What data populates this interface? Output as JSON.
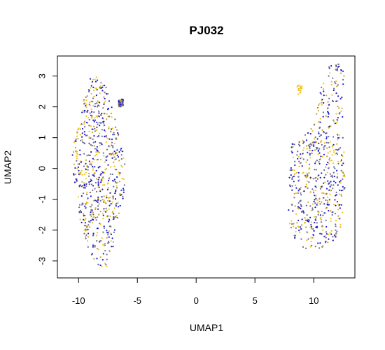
{
  "chart_data": {
    "type": "scatter",
    "title": "PJ032",
    "xlabel": "UMAP1",
    "ylabel": "UMAP2",
    "xlim": [
      -11.8,
      13.5
    ],
    "ylim": [
      -3.55,
      3.65
    ],
    "xticks": [
      -10,
      -5,
      0,
      5,
      10
    ],
    "yticks": [
      -3,
      -2,
      -1,
      0,
      1,
      2,
      3
    ],
    "grid": false,
    "legend": "none",
    "colors": [
      "#1a1ad0",
      "#6b6b95",
      "#f2c21a",
      "#c9a030"
    ],
    "color_weights": [
      0.32,
      0.28,
      0.25,
      0.15
    ],
    "seed": 20231,
    "clusters": [
      {
        "points": 700,
        "x_range": [
          -10.8,
          -5.9
        ],
        "y_range": [
          -3.3,
          3.0
        ],
        "outline": [
          [
            -3.3,
            -8.0,
            -7.8
          ],
          [
            -3.0,
            -8.7,
            -7.3
          ],
          [
            -2.6,
            -9.2,
            -7.1
          ],
          [
            -2.2,
            -9.6,
            -6.9
          ],
          [
            -1.6,
            -9.9,
            -6.6
          ],
          [
            -0.8,
            -10.1,
            -6.1
          ],
          [
            0.0,
            -10.6,
            -6.0
          ],
          [
            0.6,
            -10.5,
            -6.2
          ],
          [
            1.2,
            -10.2,
            -6.6
          ],
          [
            1.8,
            -9.9,
            -7.0
          ],
          [
            2.3,
            -9.6,
            -7.4
          ],
          [
            2.7,
            -9.3,
            -7.7
          ],
          [
            3.0,
            -9.0,
            -8.2
          ]
        ],
        "note": "left cluster"
      },
      {
        "points": 60,
        "x_range": [
          -6.6,
          -6.2
        ],
        "y_range": [
          2.0,
          2.25
        ],
        "outline": [
          [
            2.0,
            -6.65,
            -6.2
          ],
          [
            2.25,
            -6.65,
            -6.2
          ]
        ],
        "note": "small satellite near left cluster"
      },
      {
        "points": 620,
        "x_range": [
          7.6,
          12.8
        ],
        "y_range": [
          -2.6,
          3.4
        ],
        "outline": [
          [
            -2.6,
            9.2,
            10.6
          ],
          [
            -2.3,
            8.4,
            11.8
          ],
          [
            -1.8,
            7.9,
            12.4
          ],
          [
            -1.0,
            7.8,
            12.6
          ],
          [
            0.0,
            7.9,
            12.7
          ],
          [
            0.8,
            8.1,
            12.6
          ],
          [
            1.4,
            10.0,
            12.5
          ],
          [
            2.0,
            10.3,
            12.4
          ],
          [
            2.6,
            10.6,
            12.5
          ],
          [
            3.0,
            10.9,
            12.6
          ],
          [
            3.4,
            11.3,
            12.5
          ]
        ],
        "note": "right cluster"
      },
      {
        "points": 20,
        "x_range": [
          8.6,
          9.0
        ],
        "y_range": [
          2.4,
          2.7
        ],
        "outline": [
          [
            2.4,
            8.6,
            9.0
          ],
          [
            2.7,
            8.6,
            9.0
          ]
        ],
        "note": "small yellow satellite near right cluster"
      }
    ]
  }
}
